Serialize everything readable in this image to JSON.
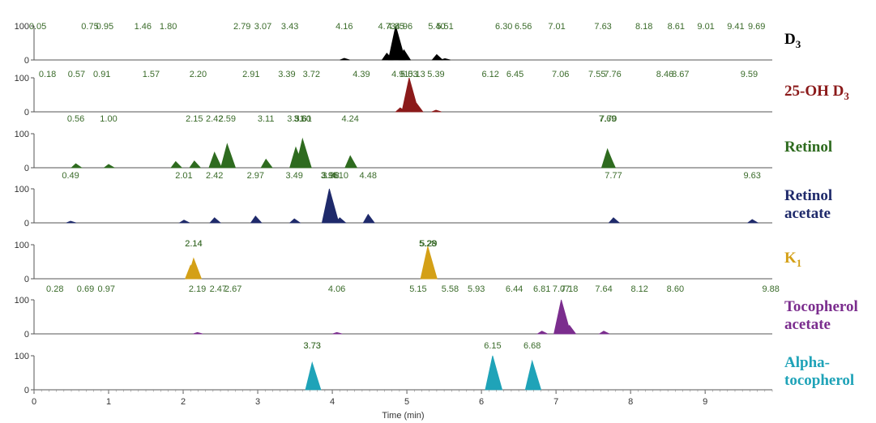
{
  "chart_data": {
    "type": "line",
    "xlabel": "Time (min)",
    "xlim": [
      0,
      9.9
    ],
    "x_ticks": [
      "0",
      "1",
      "2",
      "3",
      "4",
      "5",
      "6",
      "7",
      "8",
      "9"
    ],
    "ylim": [
      0,
      100
    ],
    "y_ticks": [
      "0",
      "100"
    ],
    "panels": [
      {
        "compound": "D",
        "compound_sub": "3",
        "color": "#000000",
        "peaks": [
          [
            4.85,
            100
          ],
          [
            4.73,
            20
          ],
          [
            4.96,
            30
          ],
          [
            5.4,
            16
          ],
          [
            4.16,
            5
          ],
          [
            5.51,
            4
          ]
        ],
        "labels": [
          "0.05",
          "0.75",
          "0.95",
          "1.46",
          "1.80",
          "2.79",
          "3.07",
          "3.43",
          "4.16",
          "4.73",
          "4.85",
          "4.96",
          "5.40",
          "5.51",
          "6.30",
          "6.56",
          "7.01",
          "7.63",
          "8.18",
          "8.61",
          "9.01",
          "9.41",
          "9.69"
        ]
      },
      {
        "compound": "25-OH D",
        "compound_sub": "3",
        "color": "#8b1a1a",
        "peaks": [
          [
            5.03,
            100
          ],
          [
            4.91,
            12
          ],
          [
            5.13,
            25
          ],
          [
            5.39,
            5
          ]
        ],
        "labels": [
          "0.18",
          "0.57",
          "0.91",
          "1.57",
          "2.20",
          "2.91",
          "3.39",
          "3.72",
          "4.39",
          "4.91",
          "5.03",
          "5.13",
          "5.39",
          "6.12",
          "6.45",
          "7.06",
          "7.55",
          "7.76",
          "8.46",
          "8.67",
          "9.59"
        ]
      },
      {
        "compound": "Retinol",
        "compound_sub": "",
        "color": "#2e6b1f",
        "peaks": [
          [
            0.56,
            12
          ],
          [
            1.0,
            10
          ],
          [
            1.9,
            18
          ],
          [
            2.15,
            20
          ],
          [
            2.42,
            45
          ],
          [
            2.59,
            70
          ],
          [
            3.11,
            25
          ],
          [
            3.51,
            60
          ],
          [
            3.6,
            85
          ],
          [
            3.61,
            65
          ],
          [
            4.24,
            35
          ],
          [
            7.69,
            55
          ],
          [
            7.7,
            45
          ]
        ],
        "labels": [
          "0.56",
          "1.00",
          "2.15",
          "2.42",
          "2.59",
          "3.11",
          "3.51",
          "3.60",
          "3.61",
          "4.24",
          "7.69",
          "7.70"
        ]
      },
      {
        "compound": "Retinol",
        "compound2": "acetate",
        "compound_sub": "",
        "color": "#1f2a6b",
        "peaks": [
          [
            0.49,
            5
          ],
          [
            2.01,
            8
          ],
          [
            2.42,
            15
          ],
          [
            2.97,
            20
          ],
          [
            3.49,
            12
          ],
          [
            3.96,
            100
          ],
          [
            3.98,
            60
          ],
          [
            4.1,
            15
          ],
          [
            4.48,
            25
          ],
          [
            7.77,
            15
          ],
          [
            9.63,
            10
          ]
        ],
        "labels": [
          "0.49",
          "2.01",
          "2.42",
          "2.97",
          "3.49",
          "3.96",
          "3.96",
          "3.98",
          "4.10",
          "4.48",
          "7.77",
          "9.63"
        ]
      },
      {
        "compound": "K",
        "compound_sub": "1",
        "color": "#d4a017",
        "peaks": [
          [
            2.1,
            40
          ],
          [
            2.14,
            60
          ],
          [
            5.28,
            95
          ],
          [
            5.29,
            60
          ]
        ],
        "labels": [
          "2.14",
          "2.14",
          "5.28",
          "5.28",
          "5.29"
        ]
      },
      {
        "compound": "Tocopherol",
        "compound2": "acetate",
        "compound_sub": "",
        "color": "#7b2d8e",
        "peaks": [
          [
            7.07,
            100
          ],
          [
            6.81,
            8
          ],
          [
            7.18,
            25
          ],
          [
            7.64,
            8
          ],
          [
            2.19,
            4
          ],
          [
            4.06,
            4
          ]
        ],
        "labels": [
          "0.28",
          "0.69",
          "0.97",
          "2.19",
          "2.47",
          "2.67",
          "4.06",
          "5.15",
          "5.58",
          "5.93",
          "6.44",
          "6.81",
          "7.07",
          "7.18",
          "7.64",
          "8.12",
          "8.60",
          "9.88"
        ]
      },
      {
        "compound": "Alpha-",
        "compound2": "tocopherol",
        "compound_sub": "",
        "color": "#1fa3b8",
        "peaks": [
          [
            3.73,
            80
          ],
          [
            6.15,
            100
          ],
          [
            6.68,
            85
          ]
        ],
        "labels": [
          "3.73",
          "3.73",
          "6.15",
          "6.68"
        ]
      }
    ]
  }
}
